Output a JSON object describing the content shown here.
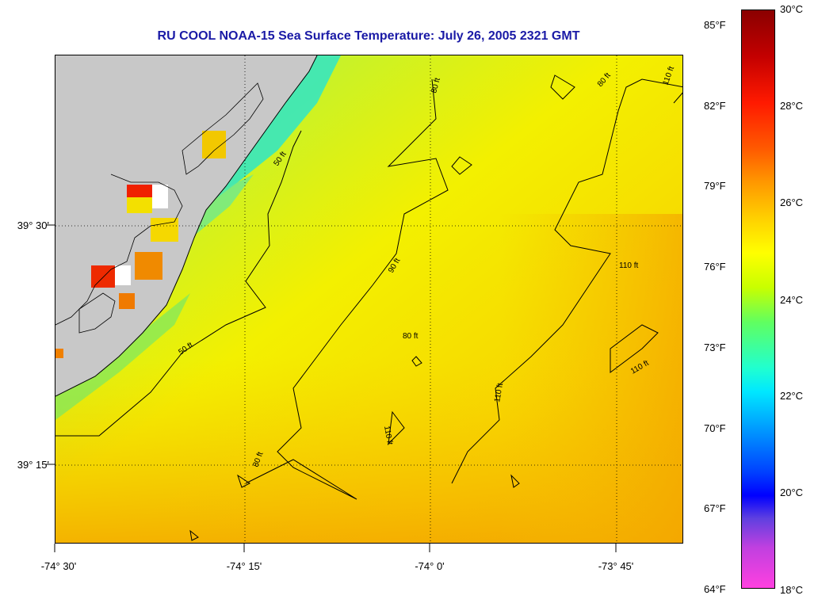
{
  "title": "RU COOL  NOAA-15  Sea Surface Temperature:  July 26, 2005 2321 GMT",
  "latitude_labels": [
    "39° 30'",
    "39° 15'"
  ],
  "longitude_labels": [
    "-74° 30'",
    "-74° 15'",
    "-74° 0'",
    "-73° 45'"
  ],
  "contour_labels": [
    "50 ft",
    "50 ft",
    "80 ft",
    "80 ft",
    "80 ft",
    "80 ft",
    "90 ft",
    "110 ft",
    "110 ft",
    "110 ft",
    "110 ft",
    "110 ft"
  ],
  "colorbar": {
    "fahrenheit": [
      "85°F",
      "82°F",
      "79°F",
      "76°F",
      "73°F",
      "70°F",
      "67°F",
      "64°F"
    ],
    "celsius": [
      "30°C",
      "28°C",
      "26°C",
      "24°C",
      "22°C",
      "20°C",
      "18°C"
    ],
    "celsius_range": [
      18,
      30
    ],
    "fahrenheit_range": [
      64.4,
      86
    ]
  },
  "colors": {
    "title": "#1a1aa6",
    "land": "#c8c8c8",
    "warm_water": "#f7d200",
    "cool_water": "#19e0d0"
  }
}
